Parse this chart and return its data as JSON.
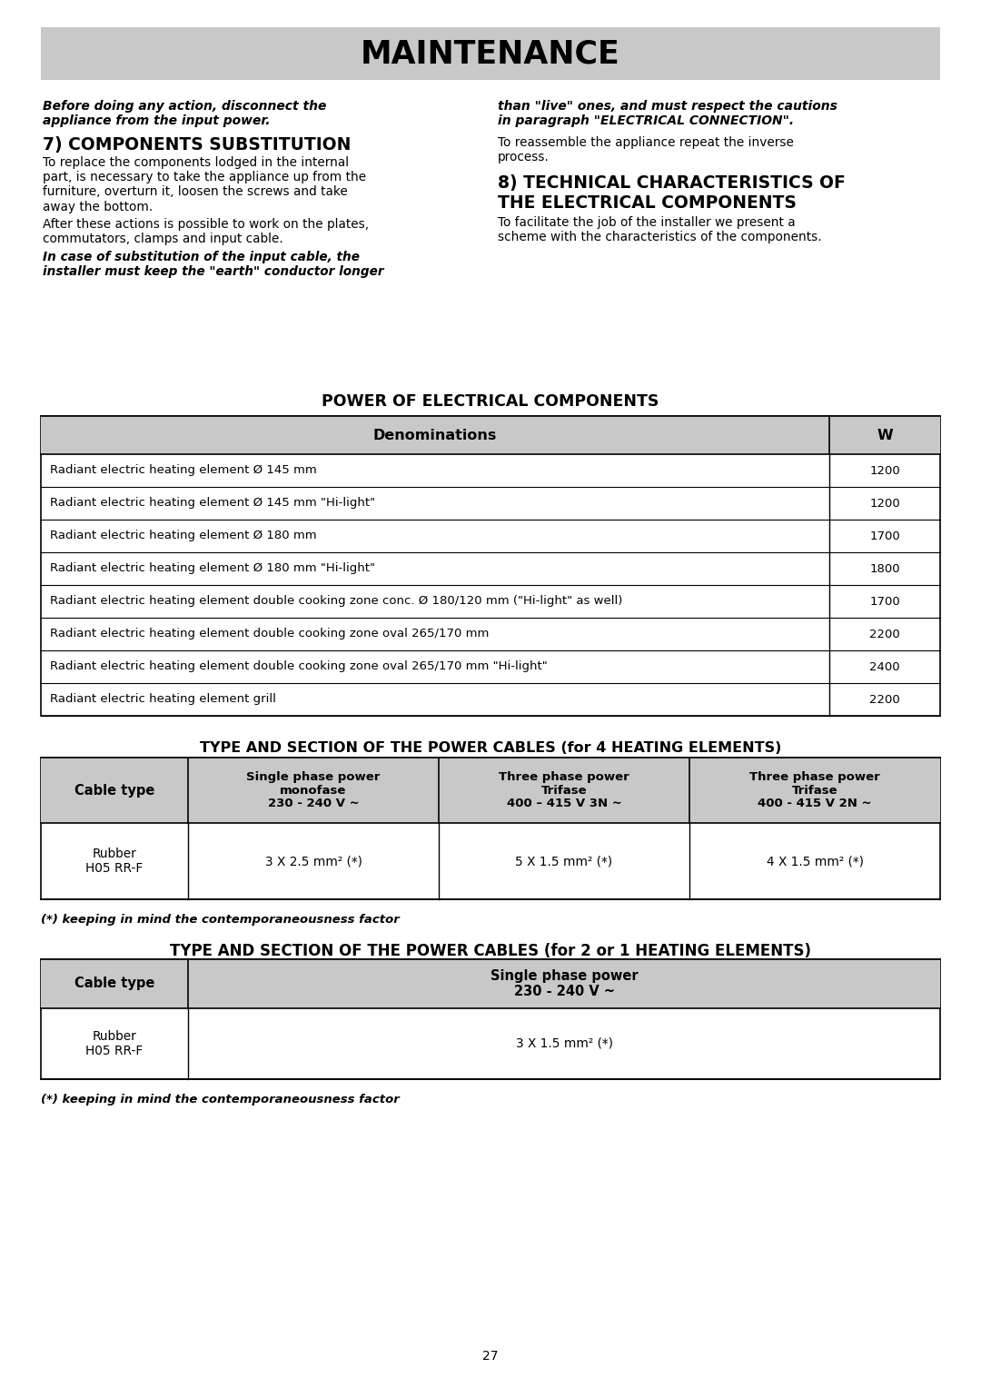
{
  "page_bg": "#ffffff",
  "title_bg": "#c8c8c8",
  "title_text": "MAINTENANCE",
  "header_bg": "#c8c8c8",
  "body_bg": "#ffffff",
  "col1_italic1": "Before doing any action, disconnect the\nappliance from the input power.",
  "col1_heading7": "7) COMPONENTS SUBSTITUTION",
  "col1_para1": "To replace the components lodged in the internal\npart, is necessary to take the appliance up from the\nfurniture, overturn it, loosen the screws and take\naway the bottom.",
  "col1_para2": "After these actions is possible to work on the plates,\ncommutators, clamps and input cable.",
  "col1_italic2": "In case of substitution of the input cable, the\ninstaller must keep the \"earth\" conductor longer",
  "col2_italic1": "than \"live\" ones, and must respect the cautions\nin paragraph \"ELECTRICAL CONNECTION\".",
  "col2_normal1": "To reassemble the appliance repeat the inverse\nprocess.",
  "col2_heading8_line1": "8) TECHNICAL CHARACTERISTICS OF",
  "col2_heading8_line2": "THE ELECTRICAL COMPONENTS",
  "col2_para8": "To facilitate the job of the installer we present a\nscheme with the characteristics of the components.",
  "power_table_title": "POWER OF ELECTRICAL COMPONENTS",
  "power_table_headers": [
    "Denominations",
    "W"
  ],
  "power_table_rows": [
    [
      "Radiant electric heating element Ø 145 mm",
      "1200"
    ],
    [
      "Radiant electric heating element Ø 145 mm \"Hi-light\"",
      "1200"
    ],
    [
      "Radiant electric heating element Ø 180 mm",
      "1700"
    ],
    [
      "Radiant electric heating element Ø 180 mm \"Hi-light\"",
      "1800"
    ],
    [
      "Radiant electric heating element double cooking zone conc. Ø 180/120 mm (\"Hi-light\" as well)",
      "1700"
    ],
    [
      "Radiant electric heating element double cooking zone oval 265/170 mm",
      "2200"
    ],
    [
      "Radiant electric heating element double cooking zone oval 265/170 mm \"Hi-light\"",
      "2400"
    ],
    [
      "Radiant electric heating element grill",
      "2200"
    ]
  ],
  "cables4_title": "TYPE AND SECTION OF THE POWER CABLES (for 4 HEATING ELEMENTS)",
  "cables4_headers": [
    "Cable type",
    "Single phase power\nmonofase\n230 - 240 V ~",
    "Three phase power\nTrifase\n400 – 415 V 3N ~",
    "Three phase power\nTrifase\n400 - 415 V 2N ~"
  ],
  "cables4_row": [
    "Rubber\nH05 RR-F",
    "3 X 2.5 mm² (*)",
    "5 X 1.5 mm² (*)",
    "4 X 1.5 mm² (*)"
  ],
  "cables4_note": "(*) keeping in mind the contemporaneousness factor",
  "cables12_title": "TYPE AND SECTION OF THE POWER CABLES (for 2 or 1 HEATING ELEMENTS)",
  "cables12_headers": [
    "Cable type",
    "Single phase power\n230 - 240 V ~"
  ],
  "cables12_row": [
    "Rubber\nH05 RR-F",
    "3 X 1.5 mm² (*)"
  ],
  "cables12_note": "(*) keeping in mind the contemporaneousness factor",
  "page_number": "27"
}
